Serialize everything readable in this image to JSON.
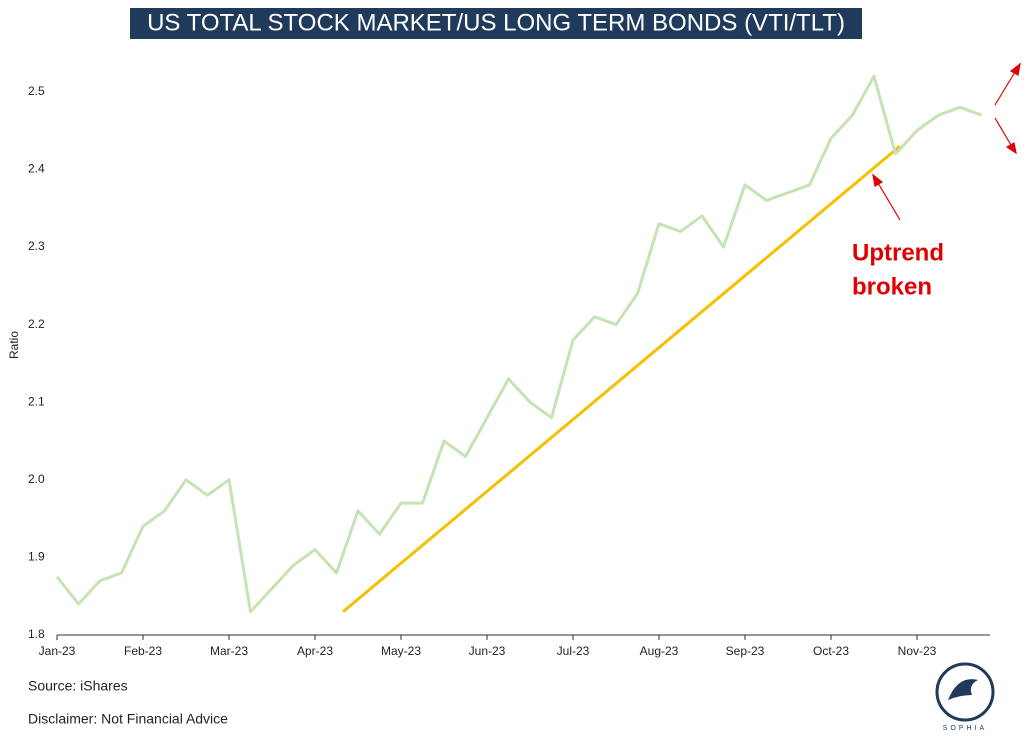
{
  "chart_data": {
    "type": "line",
    "title": "US TOTAL STOCK MARKET/US LONG TERM BONDS (VTI/TLT)",
    "ylabel": "Ratio",
    "categories": [
      "Jan-23",
      null,
      null,
      null,
      "Feb-23",
      null,
      null,
      null,
      "Mar-23",
      null,
      null,
      null,
      "Apr-23",
      null,
      null,
      null,
      "May-23",
      null,
      null,
      null,
      "Jun-23",
      null,
      null,
      null,
      "Jul-23",
      null,
      null,
      null,
      "Aug-23",
      null,
      null,
      null,
      "Sep-23",
      null,
      null,
      null,
      "Oct-23",
      null,
      null,
      null,
      "Nov-23",
      null,
      null,
      null
    ],
    "series": [
      {
        "name": "VTI/TLT",
        "color": "#c5e3b5",
        "values": [
          1.875,
          1.84,
          1.87,
          1.88,
          1.94,
          1.96,
          2.0,
          1.98,
          2.0,
          1.83,
          1.86,
          1.89,
          1.91,
          1.88,
          1.96,
          1.93,
          1.97,
          1.97,
          2.05,
          2.03,
          2.08,
          2.13,
          2.1,
          2.08,
          2.18,
          2.21,
          2.2,
          2.24,
          2.33,
          2.32,
          2.34,
          2.3,
          2.38,
          2.36,
          2.37,
          2.38,
          2.44,
          2.47,
          2.52,
          2.42,
          2.45,
          2.47,
          2.48,
          2.47
        ]
      }
    ],
    "trendline": {
      "color": "#f5c000",
      "values": [
        1.83,
        2.43
      ]
    },
    "ylim": [
      1.8,
      2.55
    ],
    "yticks": [
      {
        "value": 1.8,
        "label": "1.8"
      },
      {
        "value": 1.9,
        "label": "1.9"
      },
      {
        "value": 2.0,
        "label": "2.0"
      },
      {
        "value": 2.1,
        "label": "2.1"
      },
      {
        "value": 2.2,
        "label": "2.2"
      },
      {
        "value": 2.3,
        "label": "2.3"
      },
      {
        "value": 2.4,
        "label": "2.4"
      },
      {
        "value": 2.5,
        "label": "2.5"
      }
    ],
    "annotation": [
      "Uptrend",
      "broken"
    ],
    "source": "Source: iShares",
    "disclaimer": "Disclaimer: Not Financial Advice",
    "logo": "SOPHIA"
  }
}
